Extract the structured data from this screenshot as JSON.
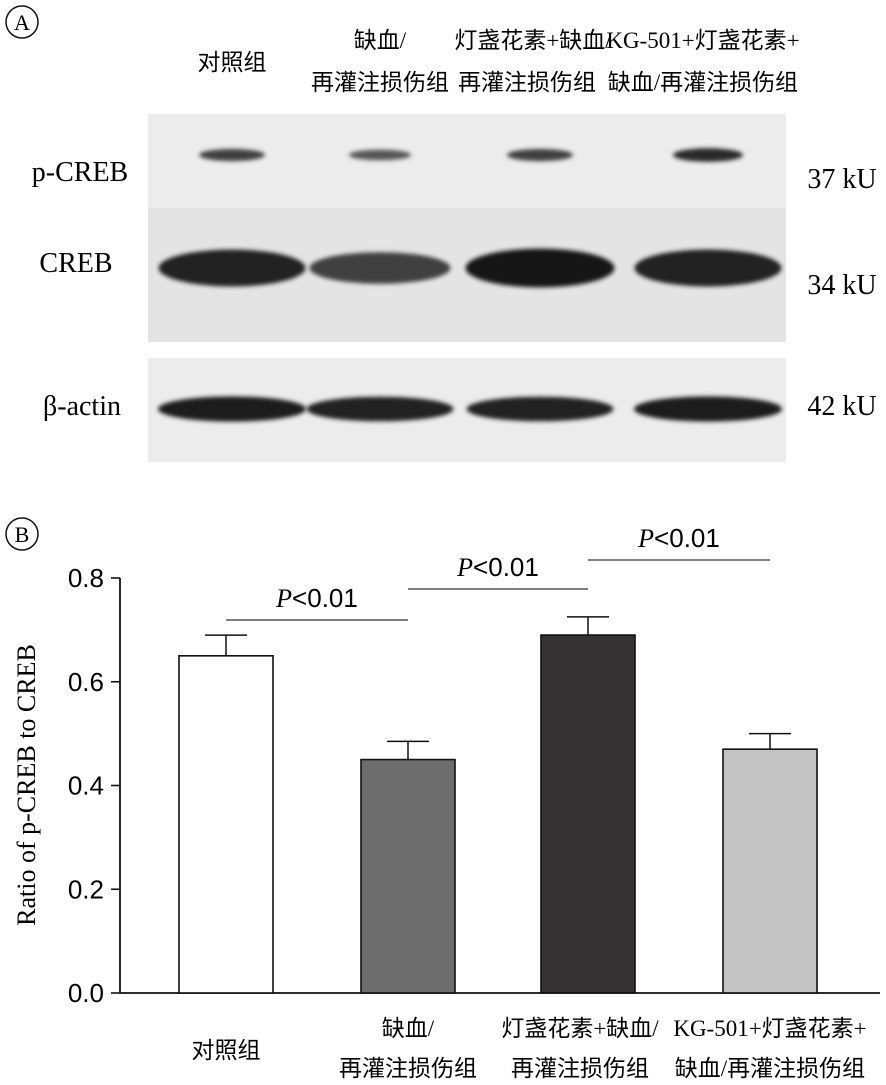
{
  "panel_a": {
    "label": "A",
    "lanes": [
      {
        "line1": "对照组",
        "line2": ""
      },
      {
        "line1": "缺血/",
        "line2": "再灌注损伤组"
      },
      {
        "line1": "灯盏花素+缺血/",
        "line2": "再灌注损伤组"
      },
      {
        "line1": "KG-501+灯盏花素+",
        "line2": "缺血/再灌注损伤组"
      }
    ],
    "blots": [
      {
        "protein": "p-CREB",
        "size": "37 kU",
        "intensity": [
          0.55,
          0.35,
          0.55,
          0.75
        ]
      },
      {
        "protein": "CREB",
        "size": "34 kU",
        "intensity": [
          0.85,
          0.55,
          0.95,
          0.85
        ]
      },
      {
        "protein": "β-actin",
        "size": "42 kU",
        "intensity": [
          0.9,
          0.85,
          0.85,
          0.9
        ]
      }
    ]
  },
  "panel_b": {
    "label": "B",
    "p_annotations": [
      {
        "italic": "P",
        "text": "<0.01",
        "from": 0,
        "to": 1
      },
      {
        "italic": "P",
        "text": "<0.01",
        "from": 1,
        "to": 2
      },
      {
        "italic": "P",
        "text": "<0.01",
        "from": 2,
        "to": 3
      }
    ]
  },
  "chart_data": {
    "type": "bar",
    "categories": [
      {
        "line1": "对照组",
        "line2": ""
      },
      {
        "line1": "缺血/",
        "line2": "再灌注损伤组"
      },
      {
        "line1": "灯盏花素+缺血/",
        "line2": "再灌注损伤组"
      },
      {
        "line1": "KG-501+灯盏花素+",
        "line2": "缺血/再灌注损伤组"
      }
    ],
    "values": [
      0.65,
      0.45,
      0.69,
      0.47
    ],
    "errors": [
      0.04,
      0.035,
      0.035,
      0.03
    ],
    "colors": [
      "#ffffff",
      "#6e6d6e",
      "#363334",
      "#c3c3c3"
    ],
    "ylabel": "Ratio of p-CREB to CREB",
    "ylim": [
      0,
      0.8
    ],
    "yticks": [
      "0.0",
      "0.2",
      "0.4",
      "0.6",
      "0.8"
    ]
  }
}
